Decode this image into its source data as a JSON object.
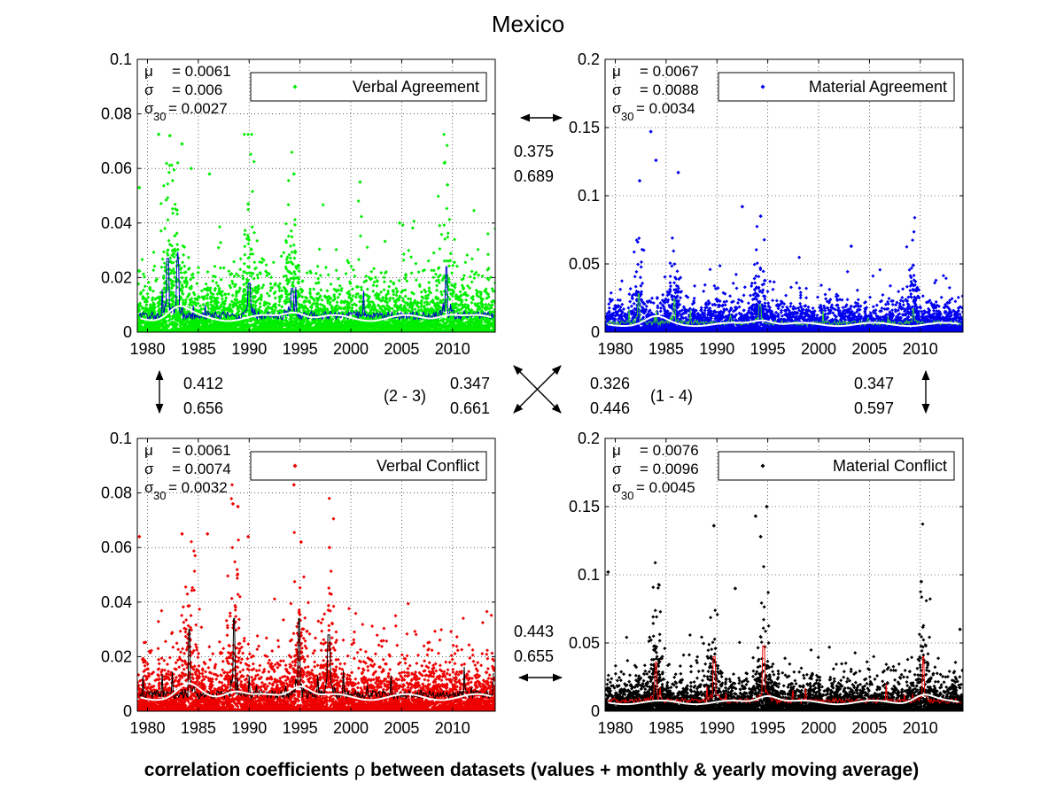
{
  "figure": {
    "title": "Mexico",
    "caption_parts": [
      "correlation coefficients ",
      "ρ",
      " between datasets (values + monthly & yearly moving average)"
    ]
  },
  "center_labels": {
    "pair_2_3": "(2 - 3)",
    "pair_1_4": "(1 - 4)"
  },
  "correlations": {
    "top": [
      "0.375",
      "0.689"
    ],
    "left": [
      "0.412",
      "0.656"
    ],
    "diag_23": [
      "0.347",
      "0.661"
    ],
    "diag_14": [
      "0.326",
      "0.446"
    ],
    "right": [
      "0.347",
      "0.597"
    ],
    "bottom": [
      "0.443",
      "0.655"
    ]
  },
  "stat_symbols": {
    "mu": "μ",
    "sigma": "σ",
    "sigma30_base": "σ",
    "sigma30_sub": "30"
  },
  "chart_data": [
    {
      "id": "verbal-agreement",
      "type": "scatter",
      "legend": "Verbal Agreement",
      "xlim": [
        1979,
        2014.2
      ],
      "ylim": [
        0,
        0.1
      ],
      "x_ticks": [
        1980,
        1985,
        1990,
        1995,
        2000,
        2005,
        2010
      ],
      "y_ticks": [
        0,
        0.02,
        0.04,
        0.06,
        0.08,
        0.1
      ],
      "y_tick_labels": [
        "0",
        "0.02",
        "0.04",
        "0.06",
        "0.08",
        "0.1"
      ],
      "grid": true,
      "legend_position": "top-right",
      "stats": {
        "mu": "= 0.0061",
        "sigma": "= 0.006",
        "sigma30": "= 0.0027"
      },
      "colors": {
        "points": "#00ee00",
        "monthly": "#0000cc",
        "yearly": "#ffffff"
      },
      "base": 0.0061,
      "spread": 0.006,
      "peak": 0.0725,
      "points": [
        [
          1979.2,
          0.053
        ],
        [
          1981.1,
          0.0725
        ],
        [
          1982.2,
          0.072
        ],
        [
          1983.4,
          0.069
        ],
        [
          1984.3,
          0.06
        ],
        [
          1986.1,
          0.058
        ],
        [
          1989.9,
          0.047
        ],
        [
          1994.4,
          0.058
        ],
        [
          2000.9,
          0.055
        ],
        [
          2004.8,
          0.04
        ],
        [
          2009.2,
          0.062
        ],
        [
          2009.5,
          0.054
        ]
      ],
      "monthly_spikes": [
        [
          1982.0,
          0.027
        ],
        [
          1983.0,
          0.025
        ],
        [
          1990.0,
          0.018
        ],
        [
          1994.2,
          0.016
        ],
        [
          2009.4,
          0.024
        ]
      ],
      "yearly_bumps": [
        [
          1983,
          0.004
        ],
        [
          1994.5,
          0.003
        ],
        [
          2009.5,
          0.002
        ]
      ]
    },
    {
      "id": "material-agreement",
      "type": "scatter",
      "legend": "Material Agreement",
      "xlim": [
        1979,
        2014.2
      ],
      "ylim": [
        0,
        0.2
      ],
      "x_ticks": [
        1980,
        1985,
        1990,
        1995,
        2000,
        2005,
        2010
      ],
      "y_ticks": [
        0,
        0.05,
        0.1,
        0.15,
        0.2
      ],
      "y_tick_labels": [
        "0",
        "0.05",
        "0.1",
        "0.15",
        "0.2"
      ],
      "grid": true,
      "legend_position": "top-right",
      "stats": {
        "mu": "= 0.0067",
        "sigma": "= 0.0088",
        "sigma30": "= 0.0034"
      },
      "colors": {
        "points": "#0000ee",
        "monthly": "#33cc33",
        "yearly": "#ffffff"
      },
      "base": 0.0067,
      "spread": 0.0088,
      "peak": 0.147,
      "points": [
        [
          1982.4,
          0.111
        ],
        [
          1983.5,
          0.147
        ],
        [
          1984.0,
          0.126
        ],
        [
          1986.2,
          0.117
        ],
        [
          1992.5,
          0.092
        ],
        [
          1994.3,
          0.085
        ],
        [
          2003.2,
          0.063
        ],
        [
          2009.3,
          0.049
        ]
      ],
      "monthly_spikes": [
        [
          1982.3,
          0.028
        ],
        [
          1985.8,
          0.024
        ],
        [
          1994.2,
          0.02
        ],
        [
          2009.3,
          0.017
        ]
      ],
      "yearly_bumps": [
        [
          1984,
          0.005
        ],
        [
          1994.5,
          0.004
        ]
      ]
    },
    {
      "id": "verbal-conflict",
      "type": "scatter",
      "legend": "Verbal Conflict",
      "xlim": [
        1979,
        2014.2
      ],
      "ylim": [
        0,
        0.1
      ],
      "x_ticks": [
        1980,
        1985,
        1990,
        1995,
        2000,
        2005,
        2010
      ],
      "y_ticks": [
        0,
        0.02,
        0.04,
        0.06,
        0.08,
        0.1
      ],
      "y_tick_labels": [
        "0",
        "0.02",
        "0.04",
        "0.06",
        "0.08",
        "0.1"
      ],
      "grid": true,
      "legend_position": "top-right",
      "stats": {
        "mu": "= 0.0061",
        "sigma": "= 0.0074",
        "sigma30": "= 0.0032"
      },
      "colors": {
        "points": "#ee0000",
        "monthly": "#000000",
        "yearly": "#ffffff"
      },
      "base": 0.0061,
      "spread": 0.0074,
      "peak": 0.083,
      "points": [
        [
          1979.2,
          0.064
        ],
        [
          1983.4,
          0.065
        ],
        [
          1985.9,
          0.065
        ],
        [
          1988.4,
          0.076
        ],
        [
          1988.9,
          0.075
        ],
        [
          1989.9,
          0.064
        ],
        [
          1994.4,
          0.083
        ],
        [
          1995.1,
          0.062
        ],
        [
          1997.9,
          0.06
        ]
      ],
      "monthly_spikes": [
        [
          1984.1,
          0.03
        ],
        [
          1988.5,
          0.034
        ],
        [
          1994.9,
          0.034
        ],
        [
          1997.8,
          0.028
        ]
      ],
      "yearly_bumps": [
        [
          1984,
          0.004
        ],
        [
          1988.5,
          0.003
        ],
        [
          1995,
          0.005
        ]
      ]
    },
    {
      "id": "material-conflict",
      "type": "scatter",
      "legend": "Material Conflict",
      "xlim": [
        1979,
        2014.2
      ],
      "ylim": [
        0,
        0.2
      ],
      "x_ticks": [
        1980,
        1985,
        1990,
        1995,
        2000,
        2005,
        2010
      ],
      "y_ticks": [
        0,
        0.05,
        0.1,
        0.15,
        0.2
      ],
      "y_tick_labels": [
        "0",
        "0.05",
        "0.1",
        "0.15",
        "0.2"
      ],
      "grid": true,
      "legend_position": "top-right",
      "stats": {
        "mu": "= 0.0076",
        "sigma": "= 0.0096",
        "sigma30": "= 0.0045"
      },
      "colors": {
        "points": "#000000",
        "monthly": "#ee0000",
        "yearly": "#ffffff"
      },
      "base": 0.0076,
      "spread": 0.0096,
      "peak": 0.15,
      "points": [
        [
          1979.3,
          0.102
        ],
        [
          1989.7,
          0.136
        ],
        [
          1993.8,
          0.143
        ],
        [
          1994.3,
          0.128
        ],
        [
          1994.9,
          0.15
        ],
        [
          2010.1,
          0.095
        ],
        [
          1991.8,
          0.09
        ],
        [
          2013.9,
          0.06
        ]
      ],
      "monthly_spikes": [
        [
          1984.0,
          0.036
        ],
        [
          1989.7,
          0.04
        ],
        [
          1994.6,
          0.048
        ],
        [
          2010.3,
          0.04
        ]
      ],
      "yearly_bumps": [
        [
          1995,
          0.006
        ],
        [
          2010.3,
          0.006
        ]
      ]
    }
  ]
}
